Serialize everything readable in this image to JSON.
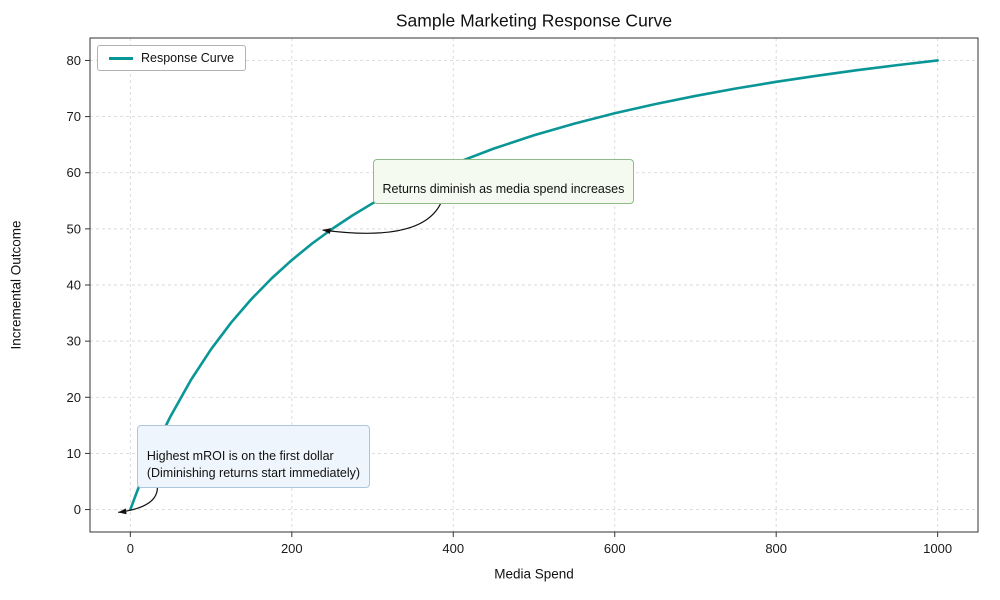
{
  "chart_data": {
    "type": "line",
    "title": "Sample Marketing Response Curve",
    "xlabel": "Media Spend",
    "ylabel": "Incremental Outcome",
    "xlim": [
      -50,
      1050
    ],
    "ylim": [
      -4,
      84
    ],
    "xticks": [
      0,
      200,
      400,
      600,
      800,
      1000
    ],
    "yticks": [
      0,
      10,
      20,
      30,
      40,
      50,
      60,
      70,
      80
    ],
    "grid": true,
    "legend_position": "upper-left",
    "x": [
      0,
      5,
      10,
      15,
      20,
      30,
      40,
      50,
      75,
      100,
      125,
      150,
      175,
      200,
      225,
      250,
      275,
      300,
      350,
      400,
      450,
      500,
      550,
      600,
      650,
      700,
      750,
      800,
      850,
      900,
      950,
      1000
    ],
    "series": [
      {
        "name": "Response Curve",
        "color": "#0a9696",
        "values": [
          0,
          1.96,
          3.85,
          5.66,
          7.41,
          10.71,
          13.79,
          16.67,
          23.08,
          28.57,
          33.33,
          37.5,
          41.18,
          44.44,
          47.37,
          50,
          52.38,
          54.55,
          58.33,
          61.54,
          64.29,
          66.67,
          68.75,
          70.59,
          72.22,
          73.68,
          75,
          76.19,
          77.27,
          78.26,
          79.17,
          80
        ]
      }
    ],
    "annotations": [
      {
        "id": "diminishing-returns",
        "text": "Returns diminish as media spend increases",
        "box_fill": "#f4faf0",
        "box_border": "#8fbb8a",
        "box_x": 300,
        "box_y": 62.5,
        "arrow_from": [
          390,
          57.5
        ],
        "arrow_ctrl": [
          383,
          47
        ],
        "arrow_to": [
          238,
          49.8
        ]
      },
      {
        "id": "highest-mroi",
        "text": "Highest mROI is on the first dollar\n(Diminishing returns start immediately)",
        "box_fill": "#eef5fc",
        "box_border": "#adc6de",
        "box_x": 8,
        "box_y": 15,
        "arrow_from": [
          24,
          7.5
        ],
        "arrow_ctrl": [
          55,
          0.8
        ],
        "arrow_to": [
          -15,
          -0.5
        ]
      }
    ]
  }
}
